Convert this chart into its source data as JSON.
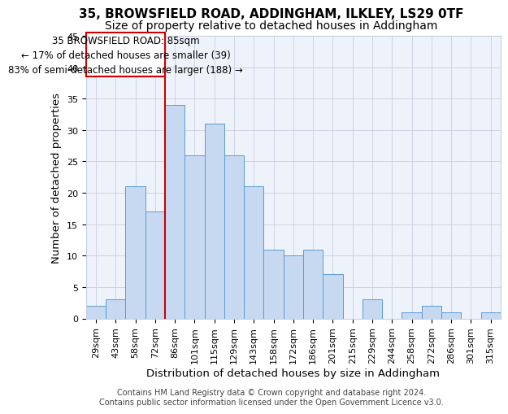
{
  "title1": "35, BROWSFIELD ROAD, ADDINGHAM, ILKLEY, LS29 0TF",
  "title2": "Size of property relative to detached houses in Addingham",
  "xlabel": "Distribution of detached houses by size in Addingham",
  "ylabel": "Number of detached properties",
  "categories": [
    "29sqm",
    "43sqm",
    "58sqm",
    "72sqm",
    "86sqm",
    "101sqm",
    "115sqm",
    "129sqm",
    "143sqm",
    "158sqm",
    "172sqm",
    "186sqm",
    "201sqm",
    "215sqm",
    "229sqm",
    "244sqm",
    "258sqm",
    "272sqm",
    "286sqm",
    "301sqm",
    "315sqm"
  ],
  "values": [
    2,
    3,
    21,
    17,
    34,
    26,
    31,
    26,
    21,
    11,
    10,
    11,
    7,
    0,
    3,
    0,
    1,
    2,
    1,
    0,
    1
  ],
  "bar_color": "#c6d9f0",
  "bar_edge_color": "#5b9bd5",
  "vline_color": "#cc0000",
  "vline_pos": 3.5,
  "ylim": [
    0,
    45
  ],
  "yticks": [
    0,
    5,
    10,
    15,
    20,
    25,
    30,
    35,
    40,
    45
  ],
  "annotation_title": "35 BROWSFIELD ROAD: 85sqm",
  "annotation_line1": "← 17% of detached houses are smaller (39)",
  "annotation_line2": "83% of semi-detached houses are larger (188) →",
  "annotation_box_color": "#cc0000",
  "footer1": "Contains HM Land Registry data © Crown copyright and database right 2024.",
  "footer2": "Contains public sector information licensed under the Open Government Licence v3.0.",
  "bg_color": "#eef2fa",
  "grid_color": "#c8cfe0",
  "title1_fontsize": 11,
  "title2_fontsize": 10,
  "axis_label_fontsize": 9.5,
  "tick_fontsize": 8,
  "annot_fontsize": 8.5,
  "footer_fontsize": 7
}
